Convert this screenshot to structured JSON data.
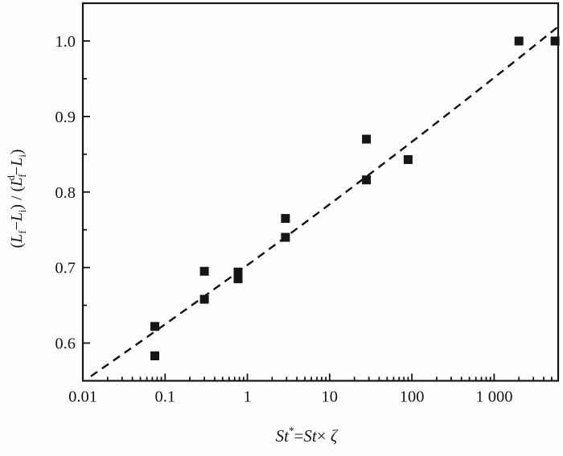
{
  "figure": {
    "description": "Semilog scatter plot of normalized final length versus modified Stokes number with dashed fit curve",
    "background": "#fefefe",
    "ink_color": "#161616"
  },
  "chart_data": {
    "type": "scatter",
    "title": "",
    "x_scale": "log",
    "y_scale": "linear",
    "xlim": [
      0.01,
      6000
    ],
    "ylim": [
      0.55,
      1.05
    ],
    "grid": false,
    "legend": "none",
    "xlabel_plain": "St* = St × ζ",
    "ylabel_plain": "(Lf − Li) / (Lf d − Li)",
    "xlabel_parts": [
      {
        "t": "St",
        "m": "i"
      },
      {
        "t": "*",
        "m": "sup"
      },
      {
        "t": "=",
        "m": "n"
      },
      {
        "t": "St",
        "m": "i"
      },
      {
        "t": "× ",
        "m": "n"
      },
      {
        "t": "ζ",
        "m": "i"
      }
    ],
    "ylabel_parts": [
      {
        "t": "(",
        "m": "n"
      },
      {
        "t": "L",
        "m": "i"
      },
      {
        "t": "f",
        "m": "sub"
      },
      {
        "t": "−",
        "m": "n"
      },
      {
        "t": "L",
        "m": "i"
      },
      {
        "t": "i",
        "m": "sub"
      },
      {
        "t": ") / (",
        "m": "n"
      },
      {
        "t": "L",
        "m": "i"
      },
      {
        "t": "f",
        "m": "sub"
      },
      {
        "t": "d",
        "m": "sup",
        "stack": true
      },
      {
        "t": "−",
        "m": "n"
      },
      {
        "t": "L",
        "m": "i"
      },
      {
        "t": "i",
        "m": "sub"
      },
      {
        "t": ")",
        "m": "n"
      }
    ],
    "x_major_ticks": [
      {
        "value": 0.01,
        "label": "0.01"
      },
      {
        "value": 0.1,
        "label": "0.1"
      },
      {
        "value": 1,
        "label": "1"
      },
      {
        "value": 10,
        "label": "10"
      },
      {
        "value": 100,
        "label": "100"
      },
      {
        "value": 1000,
        "label": "1 000"
      }
    ],
    "y_major_ticks": [
      {
        "value": 0.6,
        "label": "0.6"
      },
      {
        "value": 0.7,
        "label": "0.7"
      },
      {
        "value": 0.8,
        "label": "0.8"
      },
      {
        "value": 0.9,
        "label": "0.9"
      },
      {
        "value": 1.0,
        "label": "1.0"
      }
    ],
    "y_minor_step": 0.05,
    "series": [
      {
        "name": "experimental-points",
        "marker": "filled-square",
        "marker_size": 11,
        "color": "#161616",
        "points": [
          [
            0.075,
            0.622
          ],
          [
            0.075,
            0.583
          ],
          [
            0.3,
            0.695
          ],
          [
            0.3,
            0.658
          ],
          [
            0.77,
            0.694
          ],
          [
            0.77,
            0.685
          ],
          [
            2.9,
            0.765
          ],
          [
            2.9,
            0.74
          ],
          [
            28,
            0.87
          ],
          [
            28,
            0.816
          ],
          [
            90,
            0.843
          ],
          [
            2000,
            1.0
          ],
          [
            5500,
            1.0
          ]
        ]
      }
    ],
    "trendline": {
      "style": "dashed",
      "color": "#161616",
      "start": [
        0.0125,
        0.556
      ],
      "ctrl": [
        8.7,
        0.77
      ],
      "end": [
        6000,
        1.019
      ]
    }
  }
}
